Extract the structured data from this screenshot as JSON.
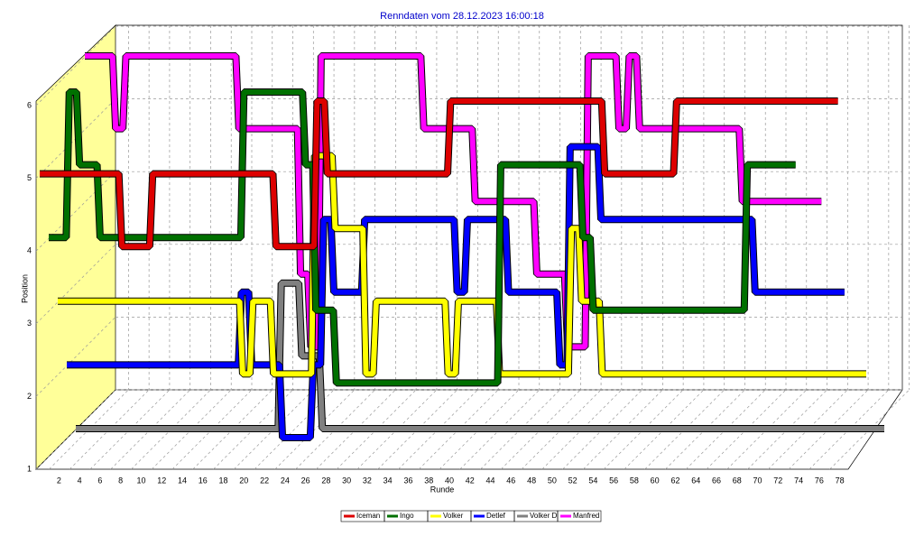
{
  "chart_data": {
    "type": "line",
    "title": "Renndaten vom 28.12.2023 16:00:18",
    "x_label": "Runde",
    "y_label": "Position",
    "x": [
      1,
      2,
      3,
      4,
      5,
      6,
      7,
      8,
      9,
      10,
      11,
      12,
      13,
      14,
      15,
      16,
      17,
      18,
      19,
      20,
      21,
      22,
      23,
      24,
      25,
      26,
      27,
      28,
      29,
      30,
      31,
      32,
      33,
      34,
      35,
      36,
      37,
      38,
      39,
      40,
      41,
      42,
      43,
      44,
      45,
      46,
      47,
      48,
      49,
      50,
      51,
      52,
      53,
      54,
      55,
      56,
      57,
      58,
      59,
      60,
      61,
      62,
      63,
      64,
      65,
      66,
      67,
      68,
      69,
      70,
      71,
      72,
      73,
      74,
      75,
      76,
      77,
      78,
      79
    ],
    "xlim": [
      1,
      79
    ],
    "xticks": [
      2,
      4,
      6,
      8,
      10,
      12,
      14,
      16,
      18,
      20,
      22,
      24,
      26,
      28,
      30,
      32,
      34,
      36,
      38,
      40,
      42,
      44,
      46,
      48,
      50,
      52,
      54,
      56,
      58,
      60,
      62,
      64,
      66,
      68,
      70,
      72,
      74,
      76,
      78
    ],
    "ylim": [
      1,
      6
    ],
    "yticks": [
      1,
      2,
      3,
      4,
      5,
      6
    ],
    "grid": true,
    "legend": "bottom",
    "series": [
      {
        "name": "Iceman",
        "color": "#dd0000",
        "values": [
          5,
          5,
          5,
          5,
          5,
          5,
          5,
          5,
          4,
          4,
          4,
          5,
          5,
          5,
          5,
          5,
          5,
          5,
          5,
          5,
          5,
          5,
          5,
          4,
          4,
          4,
          4,
          6,
          5,
          5,
          5,
          5,
          5,
          5,
          5,
          5,
          5,
          5,
          5,
          5,
          6,
          6,
          6,
          6,
          6,
          6,
          6,
          6,
          6,
          6,
          6,
          6,
          6,
          6,
          6,
          5,
          5,
          5,
          5,
          5,
          5,
          5,
          6,
          6,
          6,
          6,
          6,
          6,
          6,
          6,
          6,
          6,
          6,
          6,
          6,
          6,
          6,
          6,
          null
        ]
      },
      {
        "name": "Ingo",
        "color": "#007000",
        "values": [
          4,
          4,
          6,
          5,
          5,
          4,
          4,
          4,
          4,
          4,
          4,
          4,
          4,
          4,
          4,
          4,
          4,
          4,
          4,
          6,
          6,
          6,
          6,
          6,
          6,
          5,
          3,
          3,
          2,
          2,
          2,
          2,
          2,
          2,
          2,
          2,
          2,
          2,
          2,
          2,
          2,
          2,
          2,
          2,
          5,
          5,
          5,
          5,
          5,
          5,
          5,
          5,
          4,
          3,
          3,
          3,
          3,
          3,
          3,
          3,
          3,
          3,
          3,
          3,
          3,
          3,
          3,
          3,
          5,
          5,
          5,
          5,
          5,
          null,
          null,
          null,
          null,
          null,
          null
        ]
      },
      {
        "name": "Volker",
        "color": "#ffff00",
        "values": [
          3,
          3,
          3,
          3,
          3,
          3,
          3,
          3,
          3,
          3,
          3,
          3,
          3,
          3,
          3,
          3,
          3,
          3,
          2,
          3,
          3,
          2,
          2,
          2,
          2,
          5,
          5,
          4,
          4,
          4,
          2,
          3,
          3,
          3,
          3,
          3,
          3,
          3,
          2,
          3,
          3,
          3,
          3,
          2,
          2,
          2,
          2,
          2,
          2,
          2,
          4,
          3,
          3,
          2,
          2,
          2,
          2,
          2,
          2,
          2,
          2,
          2,
          2,
          2,
          2,
          2,
          2,
          2,
          2,
          2,
          2,
          2,
          2,
          2,
          2,
          2,
          2,
          2,
          2
        ]
      },
      {
        "name": "Detlef",
        "color": "#0000ff",
        "values": [
          2,
          2,
          2,
          2,
          2,
          2,
          2,
          2,
          2,
          2,
          2,
          2,
          2,
          2,
          2,
          2,
          2,
          3,
          2,
          2,
          2,
          1,
          1,
          1,
          2,
          4,
          3,
          3,
          3,
          4,
          4,
          4,
          4,
          4,
          4,
          4,
          4,
          4,
          3,
          4,
          4,
          4,
          4,
          3,
          3,
          3,
          3,
          3,
          2,
          5,
          5,
          5,
          4,
          4,
          4,
          4,
          4,
          4,
          4,
          4,
          4,
          4,
          4,
          4,
          4,
          4,
          4,
          3,
          3,
          3,
          3,
          3,
          3,
          3,
          3,
          3,
          null,
          null,
          null
        ]
      },
      {
        "name": "Volker D",
        "color": "#808080",
        "values": [
          1,
          1,
          1,
          1,
          1,
          1,
          1,
          1,
          1,
          1,
          1,
          1,
          1,
          1,
          1,
          1,
          1,
          1,
          1,
          1,
          3,
          3,
          2,
          2,
          1,
          1,
          1,
          1,
          1,
          1,
          1,
          1,
          1,
          1,
          1,
          1,
          1,
          1,
          1,
          1,
          1,
          1,
          1,
          1,
          1,
          1,
          1,
          1,
          1,
          1,
          1,
          1,
          1,
          1,
          1,
          1,
          1,
          1,
          1,
          1,
          1,
          1,
          1,
          1,
          1,
          1,
          1,
          1,
          1,
          1,
          1,
          1,
          1,
          1,
          1,
          1,
          1,
          1,
          1
        ]
      },
      {
        "name": "Manfred",
        "color": "#ff00ff",
        "values": [
          6,
          6,
          6,
          5,
          6,
          6,
          6,
          6,
          6,
          6,
          6,
          6,
          6,
          6,
          6,
          5,
          5,
          5,
          5,
          5,
          5,
          3,
          2,
          6,
          6,
          6,
          6,
          6,
          6,
          6,
          6,
          6,
          6,
          5,
          5,
          5,
          5,
          5,
          4,
          4,
          4,
          4,
          4,
          4,
          3,
          3,
          3,
          2,
          2,
          6,
          6,
          6,
          5,
          6,
          5,
          5,
          5,
          5,
          5,
          5,
          5,
          5,
          5,
          5,
          4,
          4,
          4,
          4,
          4,
          4,
          4,
          4,
          null,
          null,
          null,
          null,
          null,
          null,
          null
        ]
      }
    ]
  }
}
